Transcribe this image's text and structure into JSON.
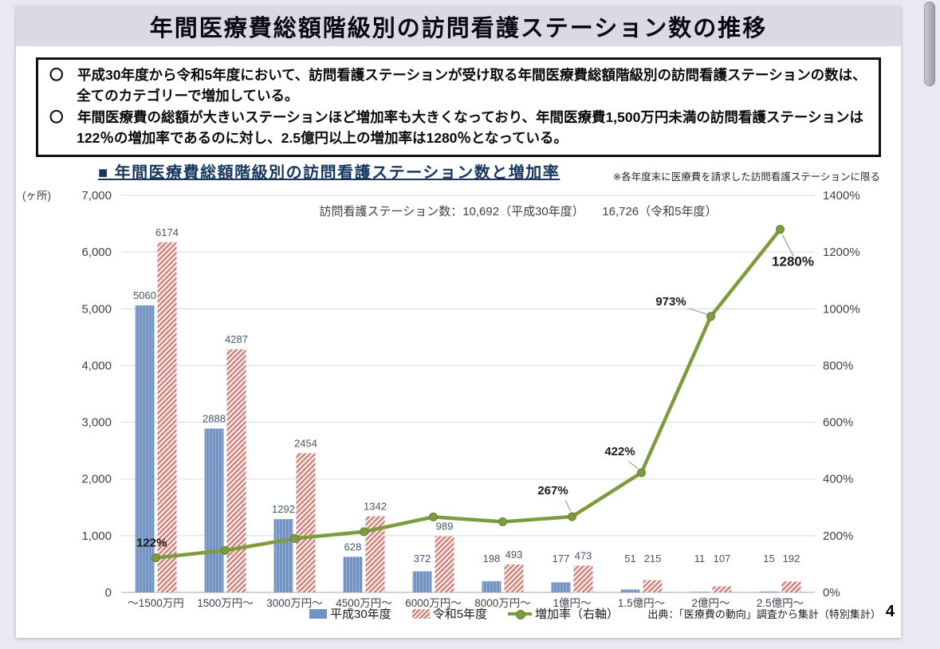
{
  "page": {
    "title": "年間医療費総額階級別の訪問看護ステーション数の推移",
    "page_number": "4"
  },
  "summary_box": {
    "bullets": [
      "〇　平成30年度から令和5年度において、訪問看護ステーションが受け取る年間医療費総額階級別の訪問看護ステーションの数は、全てのカテゴリーで増加している。",
      "〇　年間医療費の総額が大きいステーションほど増加率も大きくなっており、年間医療費1,500万円未満の訪問看護ステーションは122％の増加率であるのに対し、2.5億円以上の増加率は1280％となっている。"
    ]
  },
  "chart": {
    "header_title": "■ 年間医療費総額階級別の訪問看護ステーション数と増加率",
    "note": "※各年度末に医療費を請求した訪問看護ステーションに限る",
    "annotation": "訪問看護ステーション数：10,692（平成30年度）　　16,726（令和5年度）",
    "legend": [
      {
        "label": "平成30年度",
        "swatch": "blue-bar"
      },
      {
        "label": "令和5年度",
        "swatch": "red-hatch-bar"
      },
      {
        "label": "増加率（右軸）",
        "swatch": "green-line-marker"
      }
    ],
    "source": "出典：「医療費の動向」調査から集計（特別集計）"
  },
  "chart_data": {
    "type": "bar",
    "subtype": "grouped bars with secondary-axis line",
    "title": "年間医療費総額階級別の訪問看護ステーション数と増加率",
    "categories": [
      "～1500万円",
      "1500万円～",
      "3000万円～",
      "4500万円～",
      "6000万円～",
      "8000万円～",
      "1億円～",
      "1.5億円～",
      "2億円～",
      "2.5億円～"
    ],
    "series": [
      {
        "name": "平成30年度",
        "type": "bar",
        "color": "#7093c7",
        "axis": "left",
        "values": [
          5060,
          2888,
          1292,
          628,
          372,
          198,
          177,
          51,
          11,
          15
        ]
      },
      {
        "name": "令和5年度",
        "type": "bar",
        "style": "diagonal-hatch",
        "color": "#cb7a73",
        "axis": "left",
        "values": [
          6174,
          4287,
          2454,
          1342,
          989,
          493,
          473,
          215,
          107,
          192
        ]
      },
      {
        "name": "増加率（右軸）",
        "type": "line",
        "color": "#7d9c3e",
        "axis": "right",
        "values": [
          122,
          148,
          190,
          214,
          266,
          249,
          267,
          422,
          973,
          1280
        ],
        "labeled_points": [
          {
            "index": 0,
            "label": "122%"
          },
          {
            "index": 6,
            "label": "267%"
          },
          {
            "index": 7,
            "label": "422%"
          },
          {
            "index": 8,
            "label": "973%"
          },
          {
            "index": 9,
            "label": "1280%"
          }
        ]
      }
    ],
    "left_axis": {
      "unit": "(ヶ所)",
      "min": 0,
      "max": 7000,
      "step": 1000,
      "ticks": [
        "7,000",
        "6,000",
        "5,000",
        "4,000",
        "3,000",
        "2,000",
        "1,000",
        "0"
      ]
    },
    "right_axis": {
      "min": 0,
      "max": 1400,
      "step": 200,
      "ticks": [
        "1400%",
        "1200%",
        "1000%",
        "800%",
        "600%",
        "400%",
        "200%",
        "0%"
      ]
    },
    "grid": true,
    "grid_color": "#d9d9d9",
    "legend_position": "bottom",
    "bar_label_color": "#44546a",
    "tick_label_color": "#3f3f46"
  }
}
